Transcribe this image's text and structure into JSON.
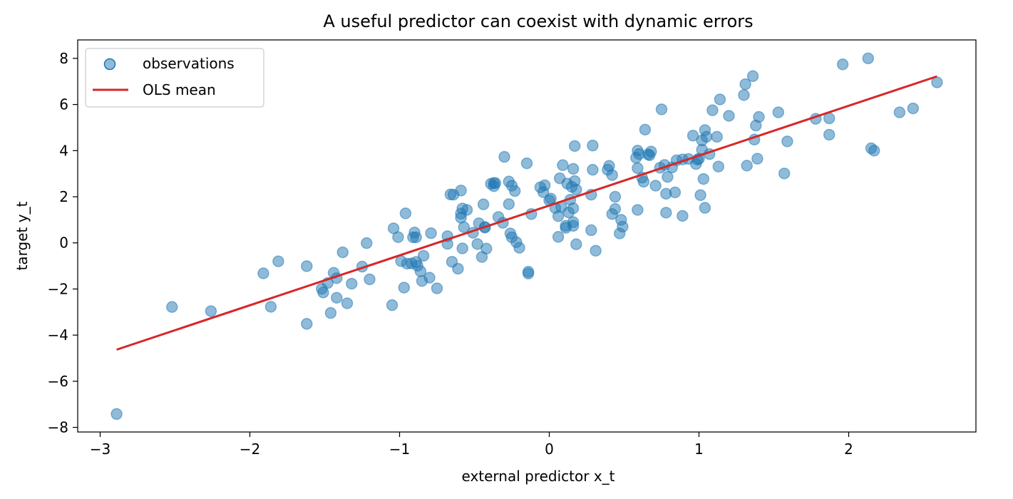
{
  "chart_data": {
    "type": "scatter",
    "title": "A useful predictor can coexist with dynamic errors",
    "xlabel": "external predictor x_t",
    "ylabel": "target y_t",
    "xlim": [
      -3.15,
      2.85
    ],
    "ylim": [
      -8.2,
      8.8
    ],
    "x_ticks": [
      -3,
      -2,
      -1,
      0,
      1,
      2
    ],
    "x_tick_labels": [
      "−3",
      "−2",
      "−1",
      "0",
      "1",
      "2"
    ],
    "y_ticks": [
      -8,
      -6,
      -4,
      -2,
      0,
      2,
      4,
      6,
      8
    ],
    "y_tick_labels": [
      "−8",
      "−6",
      "−4",
      "−2",
      "0",
      "2",
      "4",
      "6",
      "8"
    ],
    "legend": {
      "placement": "upper-left",
      "entries": [
        "observations",
        "OLS mean"
      ]
    },
    "grid": false,
    "colors": {
      "observations": "#1f77b4",
      "ols_line": "#d62728"
    },
    "series": [
      {
        "name": "observations",
        "kind": "scatter",
        "points": [
          [
            -2.89,
            -7.42
          ],
          [
            -2.52,
            -2.78
          ],
          [
            -2.26,
            -2.96
          ],
          [
            -1.91,
            -1.32
          ],
          [
            -1.86,
            -2.77
          ],
          [
            -1.81,
            -0.8
          ],
          [
            -1.62,
            -1.01
          ],
          [
            -1.62,
            -3.51
          ],
          [
            -1.52,
            -1.99
          ],
          [
            -1.51,
            -2.15
          ],
          [
            -1.48,
            -1.74
          ],
          [
            -1.46,
            -3.04
          ],
          [
            -1.44,
            -1.3
          ],
          [
            -1.42,
            -1.53
          ],
          [
            -1.42,
            -2.38
          ],
          [
            -1.38,
            -0.41
          ],
          [
            -1.35,
            -2.62
          ],
          [
            -1.32,
            -1.77
          ],
          [
            -1.25,
            -1.03
          ],
          [
            -1.22,
            -0.01
          ],
          [
            -1.2,
            -1.58
          ],
          [
            -1.05,
            -2.7
          ],
          [
            -1.04,
            0.63
          ],
          [
            -1.01,
            0.25
          ],
          [
            -0.99,
            -0.79
          ],
          [
            -0.97,
            -1.94
          ],
          [
            -0.96,
            1.28
          ],
          [
            -0.95,
            -0.9
          ],
          [
            -0.92,
            -0.89
          ],
          [
            -0.91,
            0.24
          ],
          [
            -0.9,
            0.45
          ],
          [
            -0.89,
            -0.83
          ],
          [
            -0.89,
            0.24
          ],
          [
            -0.88,
            -0.99
          ],
          [
            -0.86,
            -1.23
          ],
          [
            -0.85,
            -1.65
          ],
          [
            -0.84,
            -0.56
          ],
          [
            -0.8,
            -1.51
          ],
          [
            -0.79,
            0.42
          ],
          [
            -0.75,
            -1.97
          ],
          [
            -0.68,
            0.29
          ],
          [
            -0.68,
            -0.04
          ],
          [
            -0.66,
            2.1
          ],
          [
            -0.65,
            -0.82
          ],
          [
            -0.64,
            2.09
          ],
          [
            -0.61,
            -1.12
          ],
          [
            -0.59,
            2.27
          ],
          [
            -0.59,
            1.09
          ],
          [
            -0.59,
            1.27
          ],
          [
            -0.58,
            -0.24
          ],
          [
            -0.58,
            1.49
          ],
          [
            -0.57,
            0.68
          ],
          [
            -0.55,
            1.43
          ],
          [
            -0.51,
            0.44
          ],
          [
            -0.48,
            -0.05
          ],
          [
            -0.47,
            0.85
          ],
          [
            -0.45,
            -0.61
          ],
          [
            -0.44,
            1.67
          ],
          [
            -0.43,
            0.66
          ],
          [
            -0.43,
            0.69
          ],
          [
            -0.42,
            -0.25
          ],
          [
            -0.39,
            2.56
          ],
          [
            -0.37,
            2.6
          ],
          [
            -0.37,
            2.46
          ],
          [
            -0.36,
            2.59
          ],
          [
            -0.34,
            1.12
          ],
          [
            -0.31,
            0.87
          ],
          [
            -0.3,
            3.73
          ],
          [
            -0.27,
            2.66
          ],
          [
            -0.27,
            1.68
          ],
          [
            -0.26,
            0.41
          ],
          [
            -0.25,
            0.24
          ],
          [
            -0.25,
            2.48
          ],
          [
            -0.23,
            2.25
          ],
          [
            -0.22,
            0.03
          ],
          [
            -0.2,
            -0.21
          ],
          [
            -0.15,
            3.45
          ],
          [
            -0.14,
            -1.25
          ],
          [
            -0.14,
            -1.33
          ],
          [
            -0.12,
            1.25
          ],
          [
            -0.06,
            2.41
          ],
          [
            -0.04,
            2.2
          ],
          [
            -0.03,
            2.5
          ],
          [
            0.0,
            1.84
          ],
          [
            0.01,
            1.92
          ],
          [
            0.04,
            1.51
          ],
          [
            0.06,
            1.16
          ],
          [
            0.06,
            0.26
          ],
          [
            0.07,
            2.8
          ],
          [
            0.08,
            1.56
          ],
          [
            0.09,
            3.37
          ],
          [
            0.11,
            0.65
          ],
          [
            0.11,
            0.74
          ],
          [
            0.12,
            2.57
          ],
          [
            0.13,
            1.32
          ],
          [
            0.14,
            1.87
          ],
          [
            0.15,
            2.43
          ],
          [
            0.16,
            0.9
          ],
          [
            0.16,
            3.21
          ],
          [
            0.16,
            0.74
          ],
          [
            0.16,
            1.5
          ],
          [
            0.17,
            4.2
          ],
          [
            0.17,
            2.68
          ],
          [
            0.18,
            2.31
          ],
          [
            0.18,
            -0.06
          ],
          [
            0.28,
            2.09
          ],
          [
            0.28,
            0.55
          ],
          [
            0.29,
            3.17
          ],
          [
            0.29,
            4.22
          ],
          [
            0.31,
            -0.34
          ],
          [
            0.39,
            3.17
          ],
          [
            0.4,
            3.34
          ],
          [
            0.42,
            2.94
          ],
          [
            0.42,
            1.25
          ],
          [
            0.44,
            1.47
          ],
          [
            0.44,
            2.0
          ],
          [
            0.47,
            0.41
          ],
          [
            0.48,
            1.0
          ],
          [
            0.49,
            0.7
          ],
          [
            0.58,
            3.69
          ],
          [
            0.59,
            4.0
          ],
          [
            0.59,
            3.24
          ],
          [
            0.59,
            1.43
          ],
          [
            0.6,
            3.85
          ],
          [
            0.62,
            2.83
          ],
          [
            0.63,
            2.65
          ],
          [
            0.64,
            4.91
          ],
          [
            0.66,
            3.84
          ],
          [
            0.67,
            3.8
          ],
          [
            0.68,
            3.96
          ],
          [
            0.71,
            2.48
          ],
          [
            0.74,
            3.26
          ],
          [
            0.75,
            5.79
          ],
          [
            0.77,
            3.38
          ],
          [
            0.78,
            2.13
          ],
          [
            0.78,
            1.31
          ],
          [
            0.79,
            2.86
          ],
          [
            0.82,
            3.27
          ],
          [
            0.84,
            2.19
          ],
          [
            0.85,
            3.58
          ],
          [
            0.89,
            1.17
          ],
          [
            0.89,
            3.62
          ],
          [
            0.93,
            3.64
          ],
          [
            0.96,
            4.65
          ],
          [
            0.98,
            3.42
          ],
          [
            0.99,
            3.61
          ],
          [
            1.0,
            3.65
          ],
          [
            1.01,
            2.07
          ],
          [
            1.02,
            4.44
          ],
          [
            1.02,
            4.04
          ],
          [
            1.03,
            2.77
          ],
          [
            1.04,
            1.52
          ],
          [
            1.04,
            4.89
          ],
          [
            1.05,
            4.6
          ],
          [
            1.07,
            3.85
          ],
          [
            1.09,
            5.75
          ],
          [
            1.12,
            4.6
          ],
          [
            1.13,
            3.31
          ],
          [
            1.14,
            6.22
          ],
          [
            1.2,
            5.51
          ],
          [
            1.3,
            6.41
          ],
          [
            1.31,
            6.88
          ],
          [
            1.32,
            3.35
          ],
          [
            1.36,
            7.23
          ],
          [
            1.37,
            4.48
          ],
          [
            1.38,
            5.09
          ],
          [
            1.39,
            3.65
          ],
          [
            1.4,
            5.46
          ],
          [
            1.53,
            5.66
          ],
          [
            1.57,
            3.01
          ],
          [
            1.59,
            4.4
          ],
          [
            1.78,
            5.38
          ],
          [
            1.87,
            5.4
          ],
          [
            1.87,
            4.69
          ],
          [
            1.96,
            7.74
          ],
          [
            2.13,
            8.0
          ],
          [
            2.15,
            4.1
          ],
          [
            2.17,
            4.0
          ],
          [
            2.34,
            5.66
          ],
          [
            2.43,
            5.83
          ],
          [
            2.59,
            6.96
          ]
        ]
      },
      {
        "name": "OLS mean",
        "kind": "line",
        "points": [
          [
            -2.89,
            -4.63
          ],
          [
            2.59,
            7.22
          ]
        ]
      }
    ]
  }
}
